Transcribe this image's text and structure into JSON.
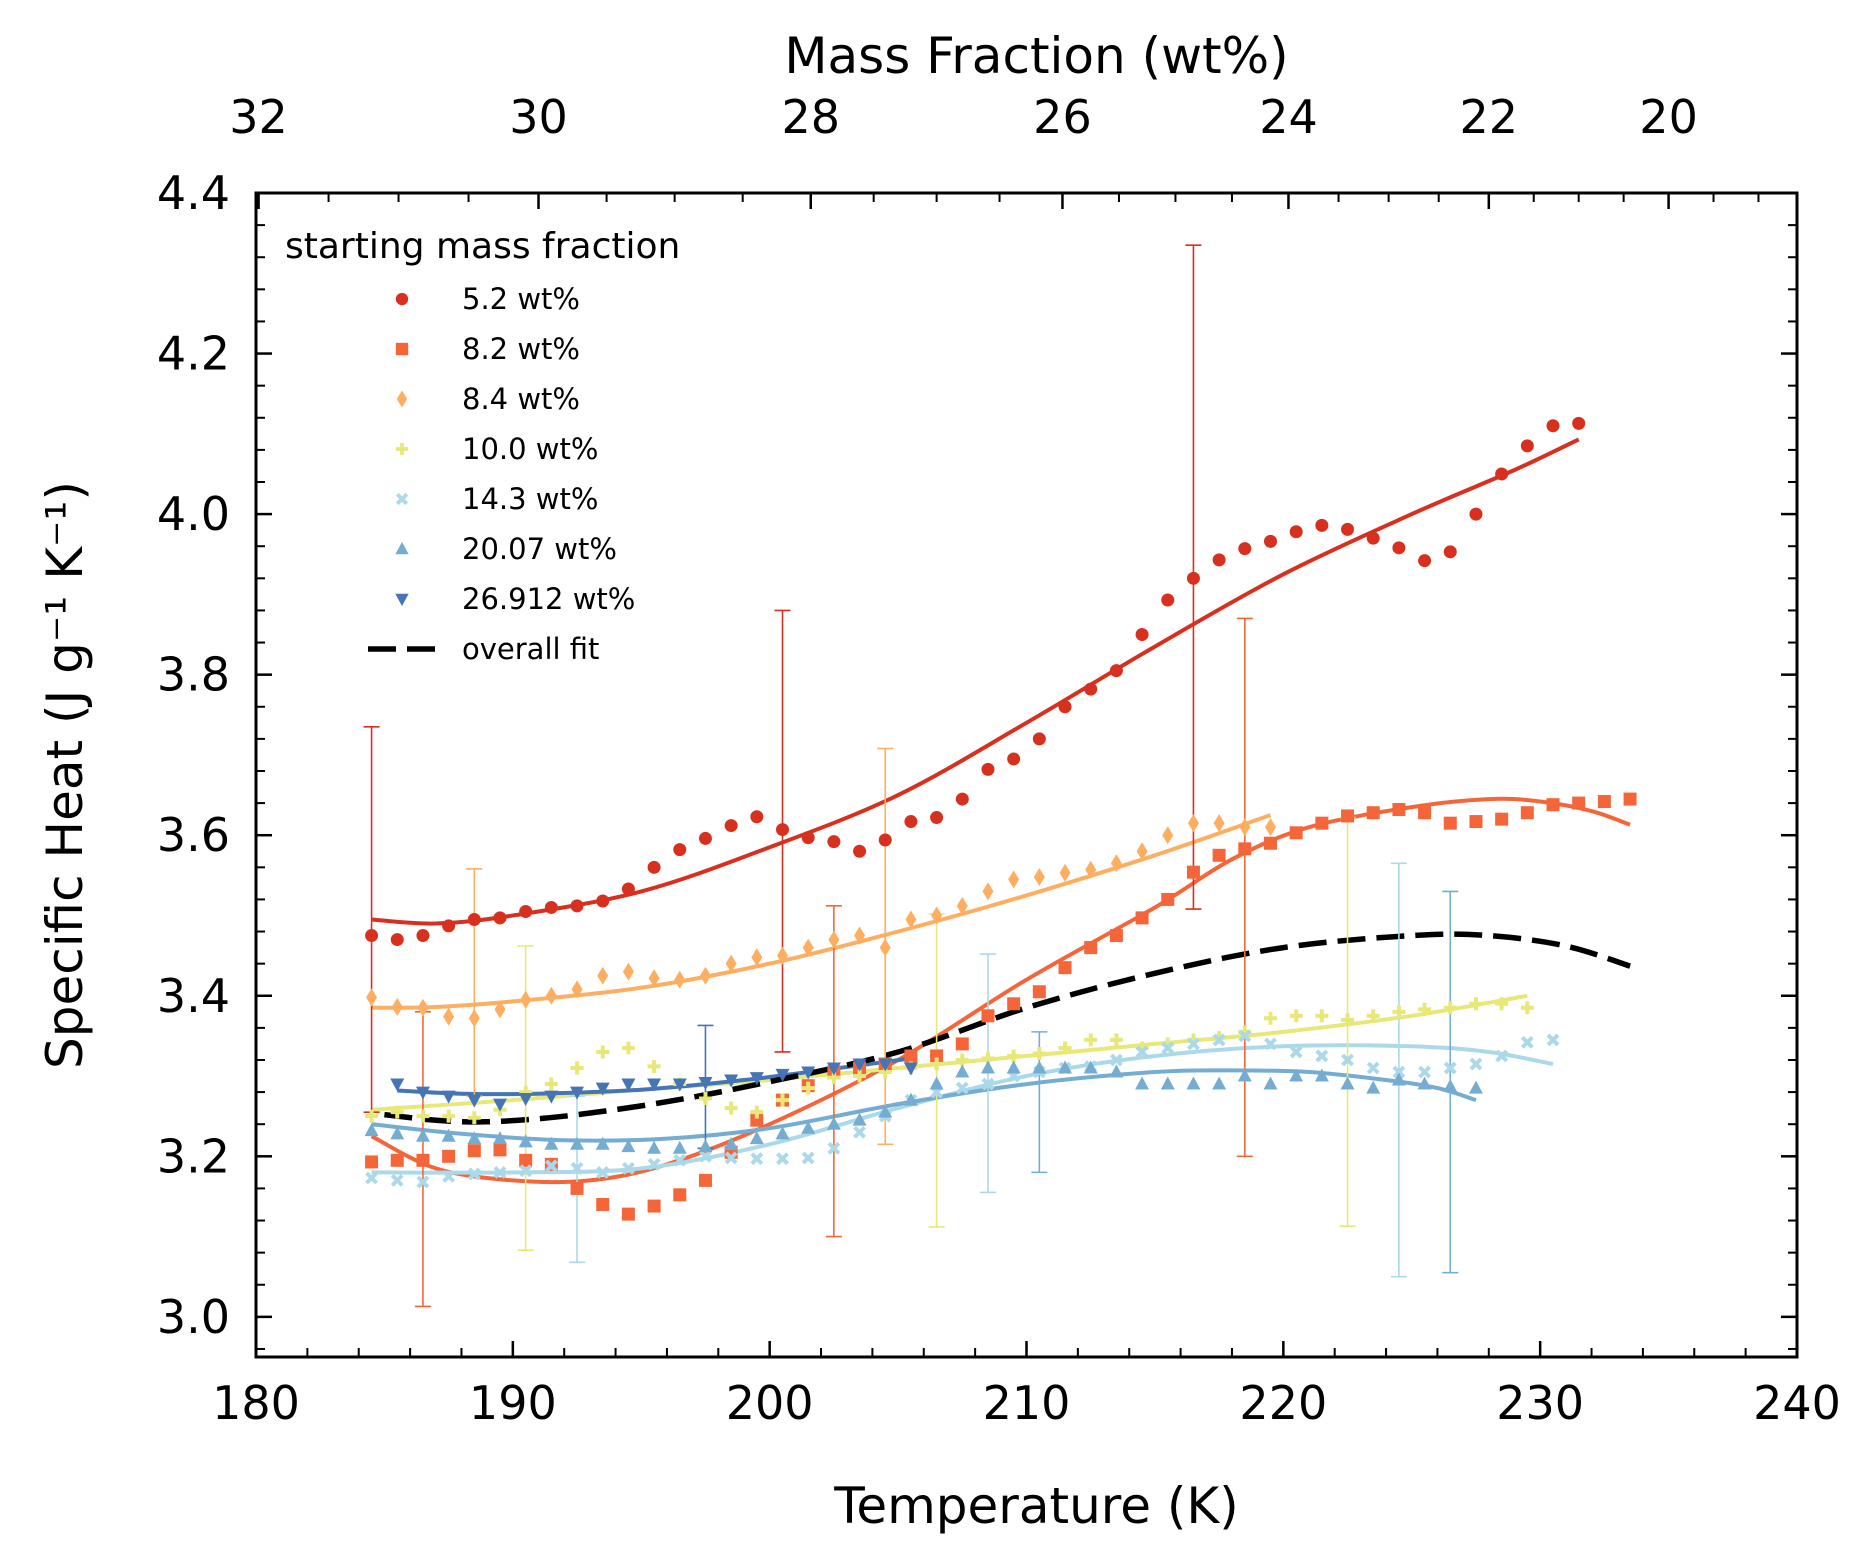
{
  "chart_data": {
    "type": "scatter",
    "xlabel": "Temperature (K)",
    "ylabel": "Specific Heat (J g⁻¹ K⁻¹)",
    "top_xlabel": "Mass Fraction (wt%)",
    "xlim": [
      180,
      240
    ],
    "ylim": [
      2.95,
      4.4
    ],
    "x_ticks": [
      "180",
      "190",
      "200",
      "210",
      "220",
      "230",
      "240"
    ],
    "y_ticks": [
      "3.0",
      "3.2",
      "3.4",
      "3.6",
      "3.8",
      "4.0",
      "4.2",
      "4.4"
    ],
    "top_ticks": [
      {
        "label": "32",
        "temperature": 180.1
      },
      {
        "label": "30",
        "temperature": 191.0
      },
      {
        "label": "28",
        "temperature": 201.6
      },
      {
        "label": "26",
        "temperature": 211.4
      },
      {
        "label": "24",
        "temperature": 220.2
      },
      {
        "label": "22",
        "temperature": 228.0
      },
      {
        "label": "20",
        "temperature": 235.0
      }
    ],
    "grid": false,
    "legend_title": "starting mass fraction",
    "legend_position": "top-left",
    "series": [
      {
        "name": "5.2 wt%",
        "color": "#d7301f",
        "marker": "circle",
        "x": [
          184.5,
          185.5,
          186.5,
          187.5,
          188.5,
          189.5,
          190.5,
          191.5,
          192.5,
          193.5,
          194.5,
          195.5,
          196.5,
          197.5,
          198.5,
          199.5,
          200.5,
          201.5,
          202.5,
          203.5,
          204.5,
          205.5,
          206.5,
          207.5,
          208.5,
          209.5,
          210.5,
          211.5,
          212.5,
          213.5,
          214.5,
          215.5,
          216.5,
          217.5,
          218.5,
          219.5,
          220.5,
          221.5,
          222.5,
          223.5,
          224.5,
          225.5,
          226.5,
          227.5,
          228.5,
          229.5,
          230.5,
          231.5
        ],
        "y": [
          3.475,
          3.47,
          3.475,
          3.487,
          3.495,
          3.497,
          3.505,
          3.51,
          3.512,
          3.518,
          3.533,
          3.56,
          3.582,
          3.596,
          3.612,
          3.623,
          3.607,
          3.597,
          3.592,
          3.58,
          3.594,
          3.617,
          3.622,
          3.645,
          3.682,
          3.695,
          3.72,
          3.76,
          3.782,
          3.805,
          3.85,
          3.893,
          3.92,
          3.943,
          3.957,
          3.966,
          3.978,
          3.986,
          3.981,
          3.97,
          3.958,
          3.942,
          3.953,
          4.0,
          4.05,
          4.085,
          4.11,
          4.113
        ],
        "fit": [
          [
            184.5,
            3.495
          ],
          [
            187,
            3.49
          ],
          [
            190,
            3.5
          ],
          [
            195,
            3.53
          ],
          [
            200,
            3.585
          ],
          [
            205,
            3.65
          ],
          [
            210,
            3.74
          ],
          [
            215,
            3.835
          ],
          [
            220,
            3.925
          ],
          [
            225,
            4.0
          ],
          [
            229,
            4.055
          ],
          [
            231.5,
            4.093
          ]
        ],
        "errorbars": [
          {
            "x": 184.5,
            "low": 3.255,
            "high": 3.735
          },
          {
            "x": 200.5,
            "low": 3.33,
            "high": 3.88
          },
          {
            "x": 216.5,
            "low": 3.508,
            "high": 4.335
          }
        ]
      },
      {
        "name": "8.2 wt%",
        "color": "#f4663a",
        "marker": "square",
        "x": [
          184.5,
          185.5,
          186.5,
          187.5,
          188.5,
          189.5,
          190.5,
          191.5,
          192.5,
          193.5,
          194.5,
          195.5,
          196.5,
          197.5,
          198.5,
          199.5,
          200.5,
          201.5,
          202.5,
          203.5,
          204.5,
          205.5,
          206.5,
          207.5,
          208.5,
          209.5,
          210.5,
          211.5,
          212.5,
          213.5,
          214.5,
          215.5,
          216.5,
          217.5,
          218.5,
          219.5,
          220.5,
          221.5,
          222.5,
          223.5,
          224.5,
          225.5,
          226.5,
          227.5,
          228.5,
          229.5,
          230.5,
          231.5,
          232.5,
          233.5
        ],
        "y": [
          3.193,
          3.195,
          3.195,
          3.2,
          3.207,
          3.208,
          3.195,
          3.19,
          3.16,
          3.14,
          3.128,
          3.138,
          3.152,
          3.17,
          3.205,
          3.245,
          3.27,
          3.288,
          3.305,
          3.31,
          3.315,
          3.325,
          3.325,
          3.34,
          3.375,
          3.39,
          3.405,
          3.435,
          3.46,
          3.475,
          3.497,
          3.52,
          3.554,
          3.575,
          3.583,
          3.59,
          3.603,
          3.615,
          3.624,
          3.628,
          3.632,
          3.628,
          3.615,
          3.617,
          3.62,
          3.628,
          3.638,
          3.64,
          3.642,
          3.645
        ],
        "fit": [
          [
            184.5,
            3.225
          ],
          [
            187,
            3.185
          ],
          [
            190,
            3.17
          ],
          [
            193,
            3.17
          ],
          [
            196,
            3.19
          ],
          [
            200,
            3.24
          ],
          [
            205,
            3.32
          ],
          [
            210,
            3.42
          ],
          [
            215,
            3.51
          ],
          [
            218,
            3.57
          ],
          [
            221,
            3.61
          ],
          [
            225,
            3.635
          ],
          [
            228,
            3.645
          ],
          [
            230,
            3.642
          ],
          [
            232,
            3.63
          ],
          [
            233.5,
            3.613
          ]
        ],
        "errorbars": [
          {
            "x": 186.5,
            "low": 3.013,
            "high": 3.38
          },
          {
            "x": 202.5,
            "low": 3.1,
            "high": 3.512
          },
          {
            "x": 218.5,
            "low": 3.2,
            "high": 3.87
          }
        ]
      },
      {
        "name": "8.4 wt%",
        "color": "#fdae61",
        "marker": "diamond",
        "x": [
          184.5,
          185.5,
          186.5,
          187.5,
          188.5,
          189.5,
          190.5,
          191.5,
          192.5,
          193.5,
          194.5,
          195.5,
          196.5,
          197.5,
          198.5,
          199.5,
          200.5,
          201.5,
          202.5,
          203.5,
          204.5,
          205.5,
          206.5,
          207.5,
          208.5,
          209.5,
          210.5,
          211.5,
          212.5,
          213.5,
          214.5,
          215.5,
          216.5,
          217.5,
          218.5,
          219.5
        ],
        "y": [
          3.398,
          3.386,
          3.385,
          3.374,
          3.372,
          3.383,
          3.395,
          3.4,
          3.408,
          3.425,
          3.43,
          3.422,
          3.42,
          3.425,
          3.44,
          3.448,
          3.45,
          3.46,
          3.47,
          3.475,
          3.46,
          3.495,
          3.5,
          3.512,
          3.53,
          3.545,
          3.548,
          3.553,
          3.557,
          3.565,
          3.58,
          3.6,
          3.615,
          3.615,
          3.61,
          3.61
        ],
        "fit": [
          [
            184.5,
            3.385
          ],
          [
            187,
            3.386
          ],
          [
            190,
            3.393
          ],
          [
            195,
            3.41
          ],
          [
            200,
            3.44
          ],
          [
            205,
            3.48
          ],
          [
            210,
            3.525
          ],
          [
            215,
            3.575
          ],
          [
            219.5,
            3.625
          ]
        ],
        "errorbars": [
          {
            "x": 188.5,
            "low": 3.275,
            "high": 3.558
          },
          {
            "x": 204.5,
            "low": 3.215,
            "high": 3.708
          }
        ]
      },
      {
        "name": "10.0 wt%",
        "color": "#e8e878",
        "marker": "plus",
        "x": [
          184.5,
          185.5,
          186.5,
          187.5,
          188.5,
          189.5,
          190.5,
          191.5,
          192.5,
          193.5,
          194.5,
          195.5,
          196.5,
          197.5,
          198.5,
          199.5,
          200.5,
          201.5,
          202.5,
          203.5,
          204.5,
          205.5,
          206.5,
          207.5,
          208.5,
          209.5,
          210.5,
          211.5,
          212.5,
          213.5,
          214.5,
          215.5,
          216.5,
          217.5,
          218.5,
          219.5,
          220.5,
          221.5,
          222.5,
          223.5,
          224.5,
          225.5,
          226.5,
          227.5,
          228.5,
          229.5
        ],
        "y": [
          3.25,
          3.255,
          3.25,
          3.25,
          3.248,
          3.258,
          3.28,
          3.29,
          3.31,
          3.33,
          3.335,
          3.312,
          3.29,
          3.272,
          3.26,
          3.255,
          3.27,
          3.285,
          3.298,
          3.3,
          3.305,
          3.31,
          3.315,
          3.32,
          3.322,
          3.325,
          3.328,
          3.335,
          3.345,
          3.345,
          3.335,
          3.34,
          3.345,
          3.348,
          3.355,
          3.372,
          3.375,
          3.375,
          3.37,
          3.375,
          3.38,
          3.383,
          3.385,
          3.39,
          3.39,
          3.385
        ],
        "fit": [
          [
            184.5,
            3.258
          ],
          [
            190,
            3.27
          ],
          [
            195,
            3.283
          ],
          [
            200,
            3.295
          ],
          [
            205,
            3.31
          ],
          [
            210,
            3.325
          ],
          [
            215,
            3.34
          ],
          [
            220,
            3.355
          ],
          [
            225,
            3.375
          ],
          [
            229.5,
            3.4
          ]
        ],
        "errorbars": [
          {
            "x": 190.5,
            "low": 3.083,
            "high": 3.462
          },
          {
            "x": 206.5,
            "low": 3.112,
            "high": 3.502
          },
          {
            "x": 222.5,
            "low": 3.113,
            "high": 3.622
          }
        ]
      },
      {
        "name": "14.3 wt%",
        "color": "#abd9e9",
        "marker": "x",
        "x": [
          184.5,
          185.5,
          186.5,
          187.5,
          188.5,
          189.5,
          190.5,
          191.5,
          192.5,
          193.5,
          194.5,
          195.5,
          196.5,
          197.5,
          198.5,
          199.5,
          200.5,
          201.5,
          202.5,
          203.5,
          204.5,
          205.5,
          206.5,
          207.5,
          208.5,
          209.5,
          210.5,
          211.5,
          212.5,
          213.5,
          214.5,
          215.5,
          216.5,
          217.5,
          218.5,
          219.5,
          220.5,
          221.5,
          222.5,
          223.5,
          224.5,
          225.5,
          226.5,
          227.5,
          228.5,
          229.5,
          230.5
        ],
        "y": [
          3.173,
          3.17,
          3.168,
          3.175,
          3.178,
          3.18,
          3.182,
          3.188,
          3.185,
          3.18,
          3.185,
          3.19,
          3.195,
          3.2,
          3.198,
          3.197,
          3.197,
          3.198,
          3.21,
          3.23,
          3.25,
          3.27,
          3.28,
          3.285,
          3.29,
          3.3,
          3.305,
          3.31,
          3.312,
          3.32,
          3.33,
          3.335,
          3.34,
          3.345,
          3.35,
          3.34,
          3.33,
          3.325,
          3.32,
          3.31,
          3.305,
          3.305,
          3.31,
          3.315,
          3.325,
          3.342,
          3.345
        ],
        "fit": [
          [
            184.5,
            3.18
          ],
          [
            190,
            3.18
          ],
          [
            195,
            3.185
          ],
          [
            200,
            3.215
          ],
          [
            205,
            3.26
          ],
          [
            210,
            3.3
          ],
          [
            215,
            3.325
          ],
          [
            220,
            3.337
          ],
          [
            225,
            3.337
          ],
          [
            228,
            3.33
          ],
          [
            230.5,
            3.315
          ]
        ],
        "errorbars": [
          {
            "x": 192.5,
            "low": 3.068,
            "high": 3.275
          },
          {
            "x": 208.5,
            "low": 3.155,
            "high": 3.452
          },
          {
            "x": 224.5,
            "low": 3.05,
            "high": 3.565
          }
        ]
      },
      {
        "name": "20.07 wt%",
        "color": "#74add1",
        "marker": "triangle-up",
        "x": [
          184.5,
          185.5,
          186.5,
          187.5,
          188.5,
          189.5,
          190.5,
          191.5,
          192.5,
          193.5,
          194.5,
          195.5,
          196.5,
          197.5,
          198.5,
          199.5,
          200.5,
          201.5,
          202.5,
          203.5,
          204.5,
          205.5,
          206.5,
          207.5,
          208.5,
          209.5,
          210.5,
          211.5,
          212.5,
          213.5,
          214.5,
          215.5,
          216.5,
          217.5,
          218.5,
          219.5,
          220.5,
          221.5,
          222.5,
          223.5,
          224.5,
          225.5,
          226.5,
          227.5
        ],
        "y": [
          3.232,
          3.228,
          3.225,
          3.225,
          3.222,
          3.222,
          3.218,
          3.215,
          3.215,
          3.215,
          3.212,
          3.21,
          3.21,
          3.212,
          3.215,
          3.222,
          3.228,
          3.235,
          3.24,
          3.245,
          3.255,
          3.27,
          3.29,
          3.305,
          3.31,
          3.31,
          3.31,
          3.31,
          3.31,
          3.305,
          3.29,
          3.29,
          3.29,
          3.29,
          3.3,
          3.29,
          3.3,
          3.3,
          3.29,
          3.285,
          3.295,
          3.29,
          3.287,
          3.285
        ],
        "fit": [
          [
            184.5,
            3.24
          ],
          [
            188,
            3.228
          ],
          [
            192,
            3.22
          ],
          [
            196,
            3.222
          ],
          [
            200,
            3.235
          ],
          [
            205,
            3.265
          ],
          [
            210,
            3.29
          ],
          [
            215,
            3.305
          ],
          [
            218,
            3.307
          ],
          [
            221,
            3.305
          ],
          [
            224,
            3.295
          ],
          [
            226,
            3.285
          ],
          [
            227.5,
            3.27
          ]
        ],
        "errorbars": [
          {
            "x": 210.5,
            "low": 3.18,
            "high": 3.355
          },
          {
            "x": 226.5,
            "low": 3.055,
            "high": 3.53
          }
        ]
      },
      {
        "name": "26.912 wt%",
        "color": "#4575b4",
        "marker": "triangle-down",
        "x": [
          185.5,
          186.5,
          187.5,
          188.5,
          189.5,
          190.5,
          191.5,
          192.5,
          193.5,
          194.5,
          195.5,
          196.5,
          197.5,
          198.5,
          199.5,
          200.5,
          201.5,
          202.5,
          203.5,
          204.5,
          205.5
        ],
        "y": [
          3.29,
          3.28,
          3.275,
          3.27,
          3.265,
          3.272,
          3.275,
          3.28,
          3.285,
          3.29,
          3.29,
          3.29,
          3.292,
          3.295,
          3.298,
          3.302,
          3.305,
          3.31,
          3.315,
          3.315,
          3.31
        ],
        "fit": [
          [
            185.5,
            3.282
          ],
          [
            188,
            3.278
          ],
          [
            191,
            3.278
          ],
          [
            195,
            3.283
          ],
          [
            199,
            3.295
          ],
          [
            202,
            3.307
          ],
          [
            205.5,
            3.322
          ]
        ],
        "errorbars": [
          {
            "x": 197.5,
            "low": 3.21,
            "high": 3.363
          }
        ]
      }
    ],
    "overall_fit": {
      "name": "overall fit",
      "color": "#000000",
      "points": [
        [
          185,
          3.252
        ],
        [
          187,
          3.245
        ],
        [
          189,
          3.243
        ],
        [
          192,
          3.25
        ],
        [
          196,
          3.268
        ],
        [
          200,
          3.293
        ],
        [
          205,
          3.33
        ],
        [
          210,
          3.385
        ],
        [
          215,
          3.428
        ],
        [
          220,
          3.46
        ],
        [
          225,
          3.475
        ],
        [
          228,
          3.475
        ],
        [
          231,
          3.462
        ],
        [
          233.5,
          3.437
        ]
      ]
    }
  }
}
